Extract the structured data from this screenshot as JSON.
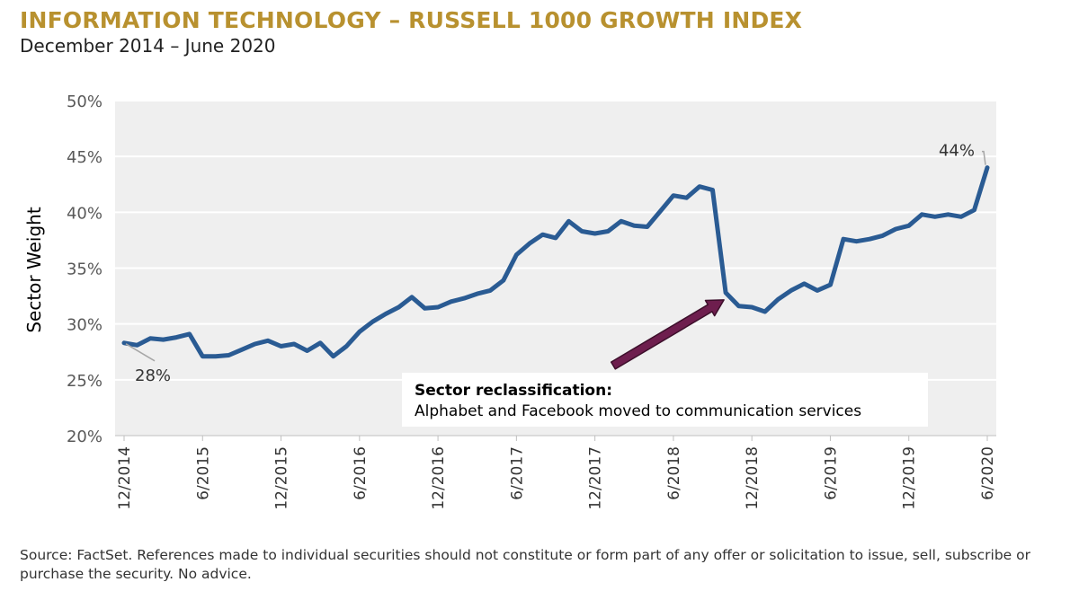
{
  "title": "INFORMATION TECHNOLOGY – RUSSELL 1000 GROWTH INDEX",
  "subtitle": "December 2014 – June 2020",
  "source": "Source: FactSet. References made to individual securities should not constitute or form part of any offer or solicitation to issue, sell, subscribe or purchase the security. No advice.",
  "annotation": {
    "title": "Sector reclassification:",
    "text": "Alphabet and Facebook moved to communication services"
  },
  "colors": {
    "title": "#B8912F",
    "line": "#2A5B93",
    "plot_bg": "#EFEFEF",
    "grid": "#FFFFFF",
    "arrow": "#6E1E4E"
  },
  "chart_data": {
    "type": "line",
    "title": "INFORMATION TECHNOLOGY – RUSSELL 1000 GROWTH INDEX",
    "xlabel": "",
    "ylabel": "Sector Weight",
    "ylim": [
      20,
      50
    ],
    "yticks": [
      20,
      25,
      30,
      35,
      40,
      45,
      50
    ],
    "ytick_labels": [
      "20%",
      "25%",
      "30%",
      "35%",
      "40%",
      "45%",
      "50%"
    ],
    "xlim": [
      0,
      66
    ],
    "xticks": [
      0,
      6,
      12,
      18,
      24,
      30,
      36,
      42,
      48,
      54,
      60,
      66
    ],
    "xtick_labels": [
      "12/2014",
      "6/2015",
      "12/2015",
      "6/2016",
      "12/2016",
      "6/2017",
      "12/2017",
      "6/2018",
      "12/2018",
      "6/2019",
      "12/2019",
      "6/2020"
    ],
    "grid": true,
    "series": [
      {
        "name": "Sector Weight",
        "x": [
          0,
          1,
          2,
          3,
          4,
          5,
          6,
          7,
          8,
          9,
          10,
          11,
          12,
          13,
          14,
          15,
          16,
          17,
          18,
          19,
          20,
          21,
          22,
          23,
          24,
          25,
          26,
          27,
          28,
          29,
          30,
          31,
          32,
          33,
          34,
          35,
          36,
          37,
          38,
          39,
          40,
          41,
          42,
          43,
          44,
          45,
          46,
          47,
          48,
          49,
          50,
          51,
          52,
          53,
          54,
          55,
          56,
          57,
          58,
          59,
          60,
          61,
          62,
          63,
          64,
          65,
          66
        ],
        "values": [
          28.3,
          28.1,
          28.7,
          28.6,
          28.8,
          29.1,
          27.1,
          27.1,
          27.2,
          27.7,
          28.2,
          28.5,
          28.0,
          28.2,
          27.6,
          28.3,
          27.1,
          28.0,
          29.3,
          30.2,
          30.9,
          31.5,
          32.4,
          31.4,
          31.5,
          32.0,
          32.3,
          32.7,
          33.0,
          33.9,
          36.2,
          37.2,
          38.0,
          37.7,
          39.2,
          38.3,
          38.1,
          38.3,
          39.2,
          38.8,
          38.7,
          40.1,
          41.5,
          41.3,
          42.3,
          42.0,
          32.8,
          31.6,
          31.5,
          31.1,
          32.2,
          33.0,
          33.6,
          33.0,
          33.5,
          37.6,
          37.4,
          37.6,
          37.9,
          38.5,
          38.8,
          39.8,
          39.6,
          39.8,
          39.6,
          40.2,
          44.0
        ]
      }
    ],
    "data_labels": [
      {
        "x": 0,
        "value": 28,
        "text": "28%"
      },
      {
        "x": 66,
        "value": 44,
        "text": "44%"
      }
    ],
    "annotations": [
      {
        "text": "Sector reclassification: Alphabet and Facebook moved to communication services",
        "arrow_target_x": 46,
        "arrow_target_value": 32.8
      }
    ]
  }
}
